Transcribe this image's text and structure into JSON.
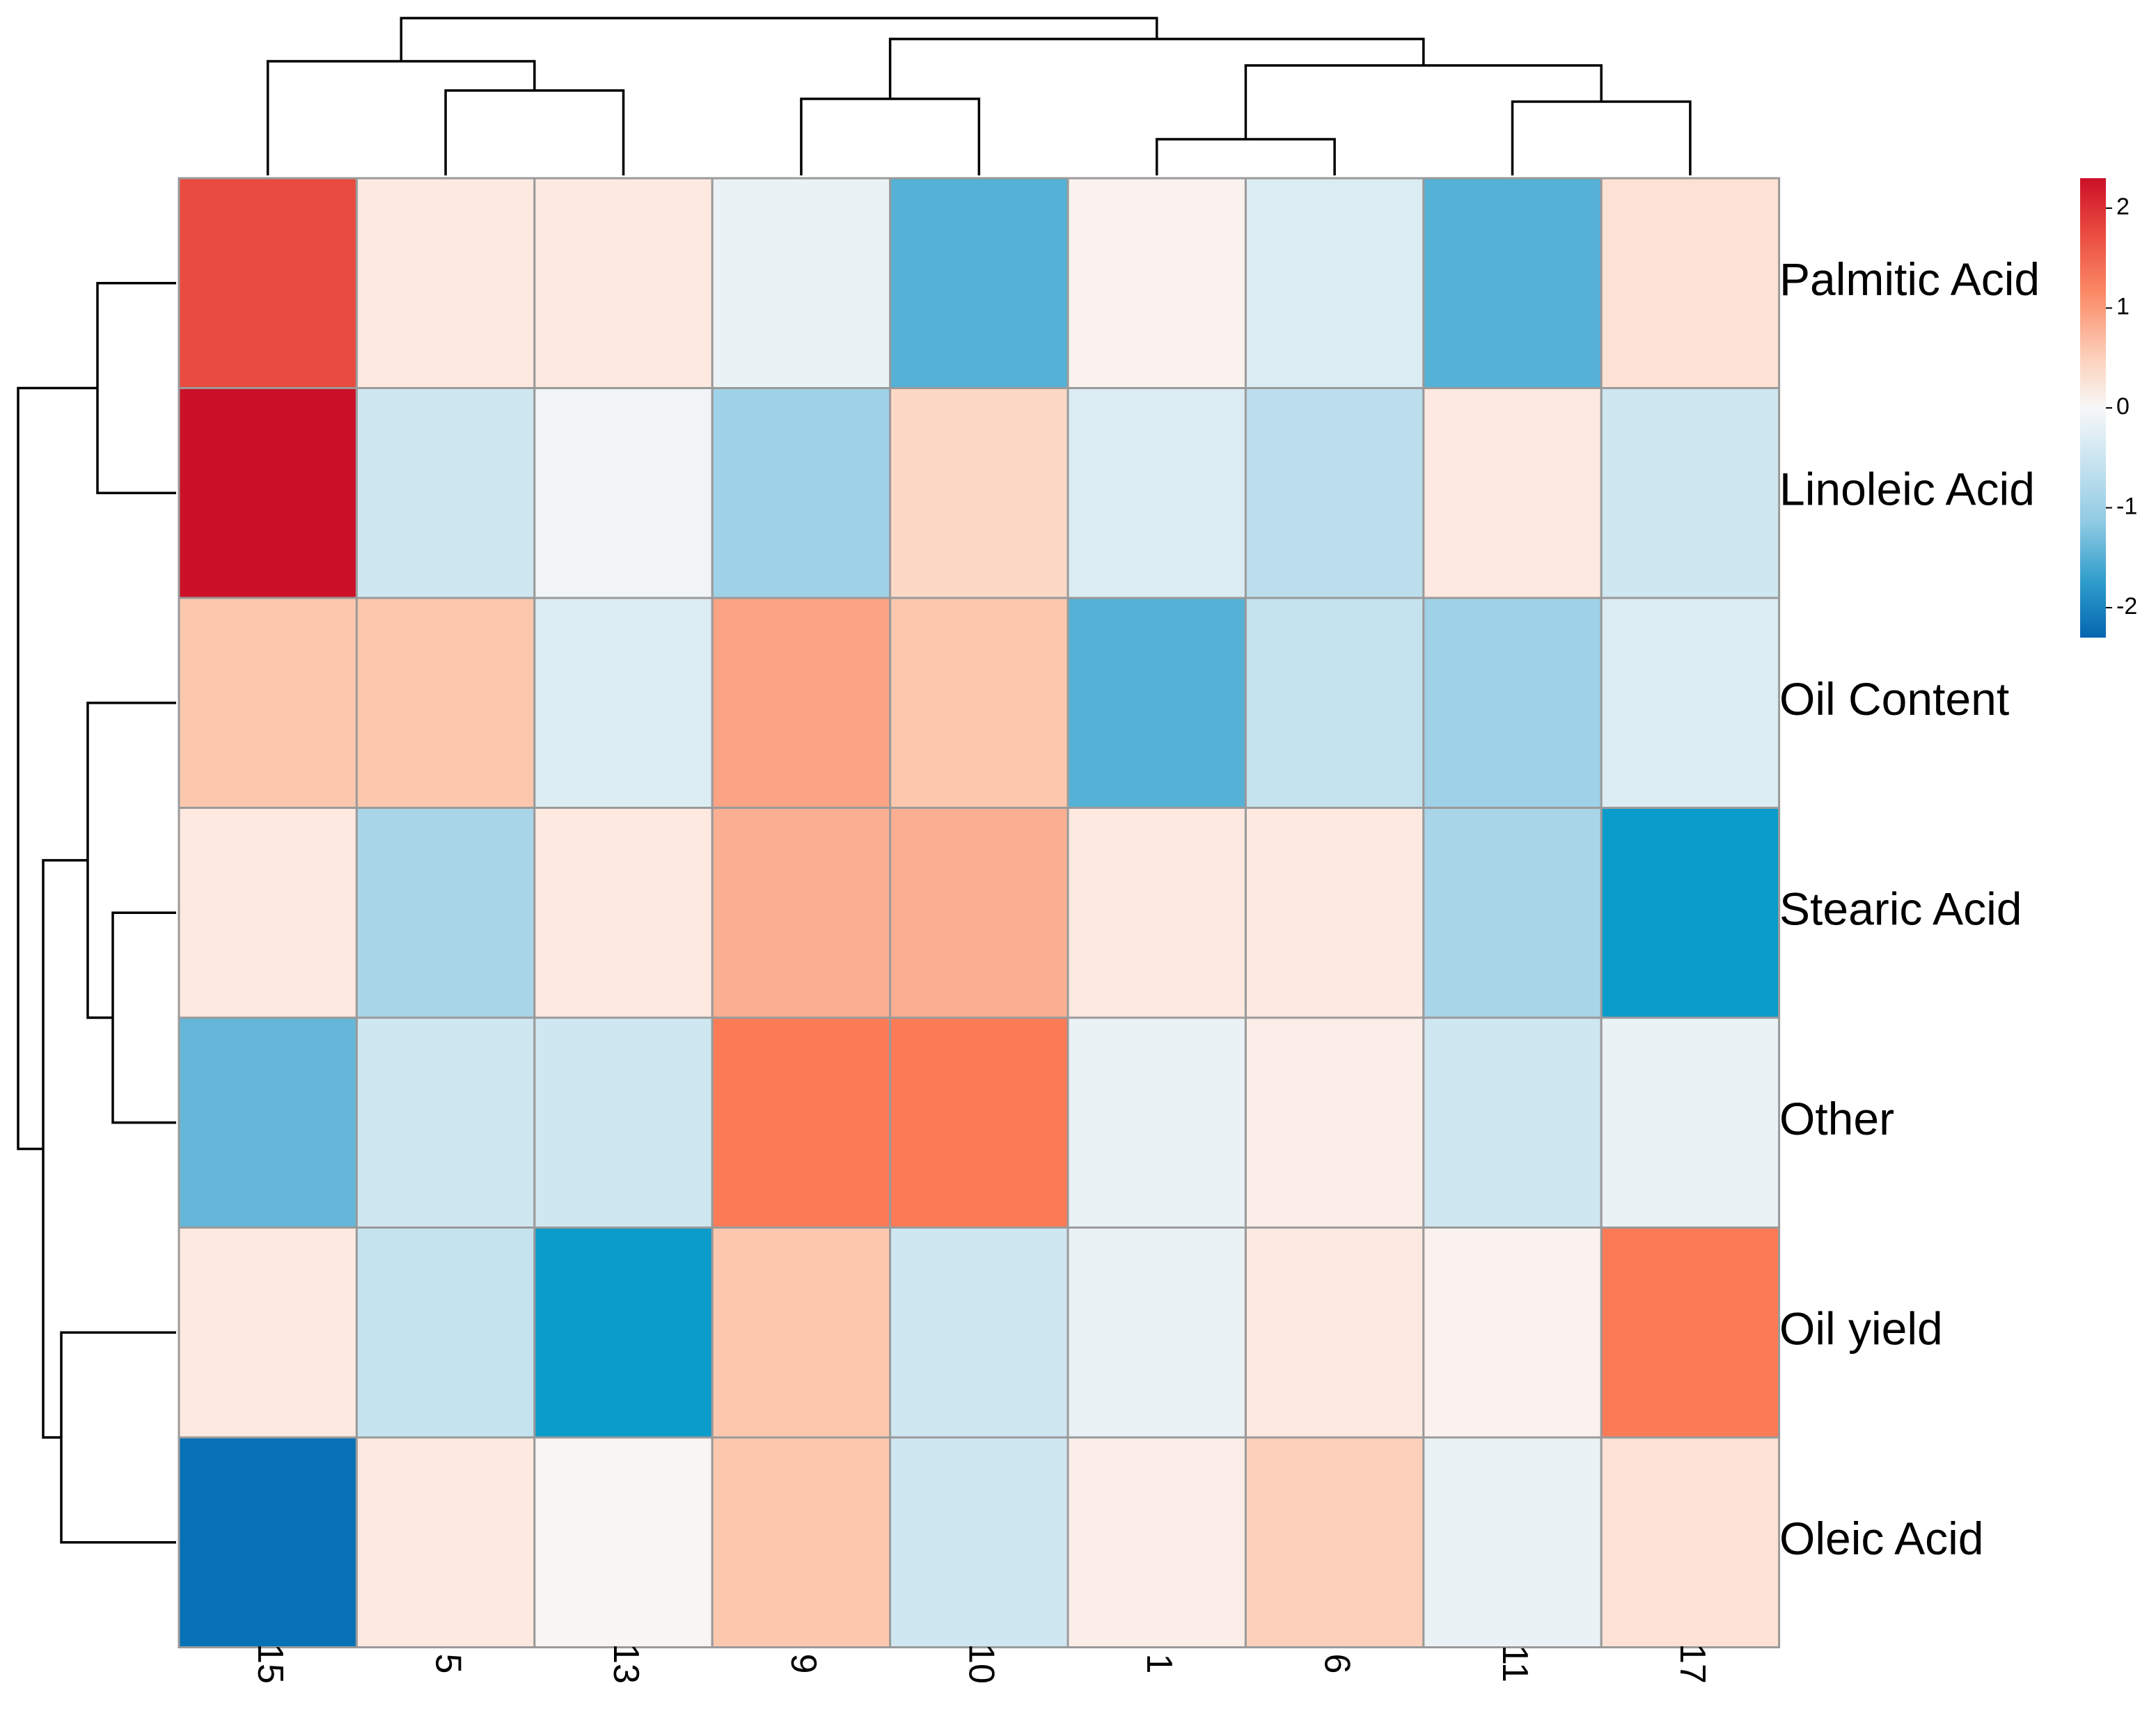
{
  "chart_data": {
    "type": "heatmap",
    "rows": [
      "Palmitic Acid",
      "Linoleic Acid",
      "Oil Content",
      "Stearic Acid",
      "Other",
      "Oil yield",
      "Oleic Acid"
    ],
    "columns": [
      "15",
      "5",
      "13",
      "9",
      "10",
      "1",
      "6",
      "11",
      "17"
    ],
    "values": [
      [
        1.9,
        0.3,
        0.3,
        -0.1,
        -1.3,
        0.1,
        -0.2,
        -1.3,
        0.4
      ],
      [
        2.3,
        -0.3,
        -0.05,
        -0.8,
        0.5,
        -0.2,
        -0.5,
        0.3,
        -0.3
      ],
      [
        0.7,
        0.7,
        -0.2,
        1.0,
        0.7,
        -1.3,
        -0.4,
        -0.8,
        -0.2
      ],
      [
        0.3,
        -0.7,
        0.3,
        0.9,
        0.9,
        0.3,
        0.3,
        -0.7,
        -1.8
      ],
      [
        -1.2,
        -0.3,
        -0.3,
        1.5,
        1.5,
        -0.1,
        0.2,
        -0.3,
        -0.1
      ],
      [
        0.3,
        -0.4,
        -1.8,
        0.7,
        -0.3,
        -0.1,
        0.3,
        0.1,
        1.5
      ],
      [
        -2.2,
        0.3,
        0.05,
        0.7,
        -0.3,
        0.2,
        0.6,
        -0.1,
        0.4
      ]
    ],
    "color_scale": {
      "min": -2.3,
      "max": 2.3,
      "stops": [
        {
          "value": -2.3,
          "color": "#0566b0"
        },
        {
          "value": -1.8,
          "color": "#0a9ccb"
        },
        {
          "value": -1.3,
          "color": "#55b1d6"
        },
        {
          "value": -0.8,
          "color": "#9fd1e7"
        },
        {
          "value": -0.3,
          "color": "#cfe7f1"
        },
        {
          "value": 0.0,
          "color": "#f7f7f7"
        },
        {
          "value": 0.3,
          "color": "#fde9e0"
        },
        {
          "value": 0.7,
          "color": "#fbc8ae"
        },
        {
          "value": 1.0,
          "color": "#fba384"
        },
        {
          "value": 1.5,
          "color": "#fb7b56"
        },
        {
          "value": 1.9,
          "color": "#ea4b40"
        },
        {
          "value": 2.3,
          "color": "#cb1028"
        }
      ]
    },
    "legend": {
      "position": "top-right",
      "ticks": [
        2,
        1,
        0,
        -1,
        -2
      ]
    },
    "dendrograms": {
      "columns": [
        {
          "left": "15",
          "right": "5-13"
        },
        {
          "left": "5",
          "right": "13"
        },
        {
          "left": "9",
          "right": "10"
        },
        {
          "left": "1",
          "right": "6"
        },
        {
          "left": "11",
          "right": "17"
        },
        {
          "left": "1-6",
          "right": "11-17"
        },
        {
          "left": "9-10",
          "right": "1-6-11-17"
        },
        {
          "left": "15-5-13",
          "right": "9-10-1-6-11-17"
        }
      ],
      "rows": [
        {
          "top": "Palmitic Acid",
          "bottom": "Linoleic Acid"
        },
        {
          "top": "Stearic Acid",
          "bottom": "Other"
        },
        {
          "top": "Oil Content",
          "bottom": "Stearic Acid-Other"
        },
        {
          "top": "Oil yield",
          "bottom": "Oleic Acid"
        },
        {
          "top": "Oil Content-Stearic Acid-Other",
          "bottom": "Oil yield-Oleic Acid"
        },
        {
          "top": "Palmitic Acid-Linoleic Acid",
          "bottom": "Oil Content-Stearic Acid-Other-Oil yield-Oleic Acid"
        }
      ]
    }
  }
}
